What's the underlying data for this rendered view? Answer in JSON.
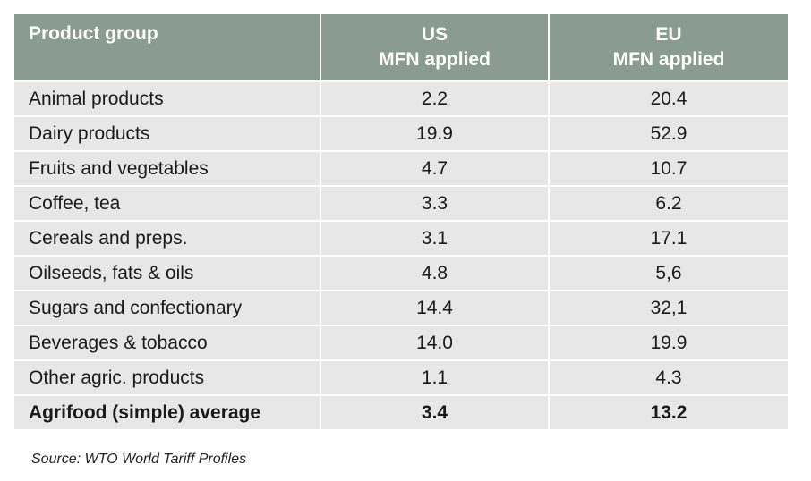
{
  "table": {
    "header": {
      "col1": "Product group",
      "col2_line1": "US",
      "col2_line2": "MFN applied",
      "col3_line1": "EU",
      "col3_line2": "MFN applied"
    },
    "rows": [
      {
        "name": "Animal products",
        "us": "2.2",
        "eu": "20.4"
      },
      {
        "name": "Dairy products",
        "us": "19.9",
        "eu": "52.9"
      },
      {
        "name": "Fruits and vegetables",
        "us": "4.7",
        "eu": "10.7"
      },
      {
        "name": "Coffee, tea",
        "us": "3.3",
        "eu": "6.2"
      },
      {
        "name": "Cereals and preps.",
        "us": "3.1",
        "eu": "17.1"
      },
      {
        "name": "Oilseeds, fats & oils",
        "us": "4.8",
        "eu": "5,6"
      },
      {
        "name": "Sugars and confectionary",
        "us": "14.4",
        "eu": "32,1"
      },
      {
        "name": "Beverages & tobacco",
        "us": "14.0",
        "eu": "19.9"
      },
      {
        "name": "Other agric. products",
        "us": "1.1",
        "eu": "4.3"
      }
    ],
    "total": {
      "name": "Agrifood (simple) average",
      "us": "3.4",
      "eu": "13.2"
    }
  },
  "source": "Source: WTO World Tariff Profiles",
  "colors": {
    "header_bg": "#8a9b91",
    "row_bg": "#e7e7e7"
  }
}
